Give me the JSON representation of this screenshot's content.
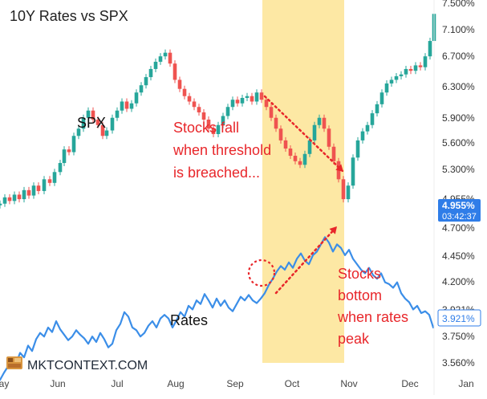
{
  "chart_data": {
    "type": "line",
    "title": "10Y Rates vs SPX",
    "x_ticks": [
      "May",
      "Jun",
      "Jul",
      "Aug",
      "Sep",
      "Oct",
      "Nov",
      "Dec",
      "Jan"
    ],
    "y_ticks": [
      "7.500%",
      "7.100%",
      "6.700%",
      "6.300%",
      "5.900%",
      "5.600%",
      "5.300%",
      "4.955%",
      "4.700%",
      "4.450%",
      "4.200%",
      "3.921%",
      "3.750%",
      "3.560%"
    ],
    "ylim": [
      3.5,
      7.55
    ],
    "current_rate_label": "4.955%",
    "current_rate_time": "03:42:37",
    "left_rate_label": "3.921%",
    "series": [
      {
        "name": "SPX",
        "kind": "candlestick-proxy",
        "values": [
          [
            0,
            5.35
          ],
          [
            6,
            5.42
          ],
          [
            12,
            5.38
          ],
          [
            18,
            5.45
          ],
          [
            24,
            5.4
          ],
          [
            30,
            5.5
          ],
          [
            36,
            5.44
          ],
          [
            42,
            5.55
          ],
          [
            48,
            5.49
          ],
          [
            55,
            5.62
          ],
          [
            62,
            5.58
          ],
          [
            68,
            5.7
          ],
          [
            75,
            5.8
          ],
          [
            80,
            5.95
          ],
          [
            86,
            5.92
          ],
          [
            92,
            6.1
          ],
          [
            98,
            6.18
          ],
          [
            104,
            6.3
          ],
          [
            110,
            6.38
          ],
          [
            116,
            6.28
          ],
          [
            122,
            6.22
          ],
          [
            128,
            6.1
          ],
          [
            133,
            6.16
          ],
          [
            140,
            6.3
          ],
          [
            146,
            6.38
          ],
          [
            152,
            6.48
          ],
          [
            158,
            6.4
          ],
          [
            164,
            6.46
          ],
          [
            170,
            6.58
          ],
          [
            176,
            6.66
          ],
          [
            182,
            6.75
          ],
          [
            188,
            6.84
          ],
          [
            194,
            6.92
          ],
          [
            200,
            6.98
          ],
          [
            206,
            7.02
          ],
          [
            212,
            6.9
          ],
          [
            218,
            6.72
          ],
          [
            224,
            6.62
          ],
          [
            230,
            6.54
          ],
          [
            236,
            6.48
          ],
          [
            242,
            6.42
          ],
          [
            248,
            6.36
          ],
          [
            254,
            6.28
          ],
          [
            260,
            6.18
          ],
          [
            266,
            6.12
          ],
          [
            272,
            6.22
          ],
          [
            278,
            6.32
          ],
          [
            284,
            6.42
          ],
          [
            290,
            6.5
          ],
          [
            296,
            6.46
          ],
          [
            302,
            6.52
          ],
          [
            308,
            6.54
          ],
          [
            314,
            6.48
          ],
          [
            320,
            6.58
          ],
          [
            326,
            6.5
          ],
          [
            332,
            6.42
          ],
          [
            338,
            6.3
          ],
          [
            344,
            6.18
          ],
          [
            350,
            6.05
          ],
          [
            356,
            5.96
          ],
          [
            362,
            5.88
          ],
          [
            368,
            5.82
          ],
          [
            374,
            5.78
          ],
          [
            380,
            5.9
          ],
          [
            386,
            6.05
          ],
          [
            392,
            6.22
          ],
          [
            398,
            6.3
          ],
          [
            404,
            6.18
          ],
          [
            410,
            5.98
          ],
          [
            416,
            5.82
          ],
          [
            422,
            5.62
          ],
          [
            428,
            5.4
          ],
          [
            434,
            5.55
          ],
          [
            440,
            5.86
          ],
          [
            446,
            6.05
          ],
          [
            452,
            6.15
          ],
          [
            458,
            6.22
          ],
          [
            464,
            6.35
          ],
          [
            470,
            6.45
          ],
          [
            476,
            6.58
          ],
          [
            482,
            6.68
          ],
          [
            488,
            6.72
          ],
          [
            494,
            6.76
          ],
          [
            500,
            6.78
          ],
          [
            506,
            6.84
          ],
          [
            512,
            6.82
          ],
          [
            518,
            6.88
          ],
          [
            524,
            6.86
          ],
          [
            530,
            6.98
          ],
          [
            536,
            7.15
          ],
          [
            541,
            7.45
          ]
        ]
      },
      {
        "name": "Rates",
        "values": [
          [
            0,
            3.4
          ],
          [
            5,
            3.48
          ],
          [
            10,
            3.55
          ],
          [
            15,
            3.62
          ],
          [
            20,
            3.58
          ],
          [
            25,
            3.7
          ],
          [
            30,
            3.65
          ],
          [
            35,
            3.78
          ],
          [
            40,
            3.72
          ],
          [
            45,
            3.85
          ],
          [
            50,
            3.92
          ],
          [
            55,
            3.88
          ],
          [
            60,
            3.98
          ],
          [
            65,
            3.93
          ],
          [
            70,
            4.05
          ],
          [
            75,
            3.96
          ],
          [
            80,
            3.9
          ],
          [
            85,
            3.84
          ],
          [
            90,
            3.88
          ],
          [
            95,
            3.95
          ],
          [
            100,
            3.9
          ],
          [
            105,
            3.86
          ],
          [
            110,
            3.8
          ],
          [
            115,
            3.88
          ],
          [
            120,
            3.82
          ],
          [
            125,
            3.92
          ],
          [
            130,
            3.85
          ],
          [
            135,
            3.76
          ],
          [
            140,
            3.8
          ],
          [
            145,
            3.95
          ],
          [
            150,
            4.02
          ],
          [
            155,
            4.15
          ],
          [
            160,
            4.1
          ],
          [
            165,
            3.98
          ],
          [
            170,
            3.95
          ],
          [
            175,
            3.88
          ],
          [
            180,
            3.92
          ],
          [
            185,
            4.0
          ],
          [
            190,
            4.05
          ],
          [
            195,
            3.98
          ],
          [
            200,
            4.08
          ],
          [
            205,
            4.12
          ],
          [
            210,
            4.08
          ],
          [
            215,
            3.98
          ],
          [
            220,
            4.06
          ],
          [
            225,
            4.15
          ],
          [
            230,
            4.1
          ],
          [
            235,
            4.22
          ],
          [
            240,
            4.18
          ],
          [
            245,
            4.28
          ],
          [
            250,
            4.24
          ],
          [
            255,
            4.35
          ],
          [
            260,
            4.28
          ],
          [
            265,
            4.2
          ],
          [
            270,
            4.3
          ],
          [
            275,
            4.22
          ],
          [
            280,
            4.28
          ],
          [
            285,
            4.2
          ],
          [
            290,
            4.16
          ],
          [
            295,
            4.24
          ],
          [
            300,
            4.32
          ],
          [
            305,
            4.28
          ],
          [
            310,
            4.34
          ],
          [
            315,
            4.28
          ],
          [
            320,
            4.25
          ],
          [
            325,
            4.3
          ],
          [
            330,
            4.36
          ],
          [
            335,
            4.45
          ],
          [
            340,
            4.52
          ],
          [
            345,
            4.6
          ],
          [
            350,
            4.66
          ],
          [
            355,
            4.62
          ],
          [
            360,
            4.7
          ],
          [
            365,
            4.64
          ],
          [
            370,
            4.74
          ],
          [
            375,
            4.8
          ],
          [
            380,
            4.72
          ],
          [
            385,
            4.68
          ],
          [
            390,
            4.78
          ],
          [
            395,
            4.82
          ],
          [
            400,
            4.9
          ],
          [
            405,
            4.98
          ],
          [
            410,
            4.92
          ],
          [
            415,
            4.82
          ],
          [
            420,
            4.9
          ],
          [
            425,
            4.86
          ],
          [
            430,
            4.78
          ],
          [
            435,
            4.84
          ],
          [
            440,
            4.74
          ],
          [
            445,
            4.68
          ],
          [
            450,
            4.62
          ],
          [
            455,
            4.58
          ],
          [
            460,
            4.64
          ],
          [
            465,
            4.56
          ],
          [
            470,
            4.52
          ],
          [
            475,
            4.58
          ],
          [
            480,
            4.48
          ],
          [
            485,
            4.46
          ],
          [
            490,
            4.42
          ],
          [
            495,
            4.48
          ],
          [
            500,
            4.36
          ],
          [
            505,
            4.3
          ],
          [
            510,
            4.26
          ],
          [
            515,
            4.18
          ],
          [
            520,
            4.22
          ],
          [
            525,
            4.14
          ],
          [
            530,
            4.16
          ],
          [
            535,
            4.12
          ],
          [
            540,
            3.98
          ]
        ]
      }
    ],
    "annotations": {
      "spx_label": "SPX",
      "rates_label": "Rates",
      "fall_text": [
        "Stocks fall",
        "when threshold",
        "is breached..."
      ],
      "bottom_text": [
        "Stocks",
        "bottom",
        "when rates",
        "peak"
      ]
    },
    "colors": {
      "spx_up": "#26a69a",
      "spx_down": "#ef5350",
      "rates_line": "#3b8ee8",
      "highlight": "#fde59a",
      "annotation_red": "#e8262a",
      "current_label_bg": "#2f7de8"
    },
    "watermark": "MKTCONTEXT.COM"
  }
}
